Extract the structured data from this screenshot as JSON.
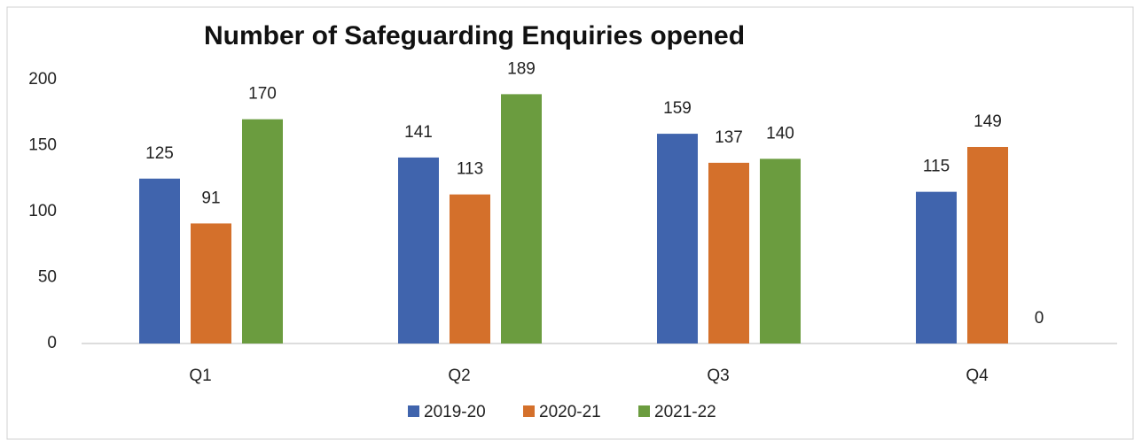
{
  "chart_data": {
    "type": "bar",
    "title": "Number of Safeguarding Enquiries opened",
    "categories": [
      "Q1",
      "Q2",
      "Q3",
      "Q4"
    ],
    "series": [
      {
        "name": "2019-20",
        "color": "#4064ad",
        "values": [
          125,
          141,
          159,
          115
        ]
      },
      {
        "name": "2020-21",
        "color": "#d4702b",
        "values": [
          91,
          113,
          137,
          149
        ]
      },
      {
        "name": "2021-22",
        "color": "#6b9c3f",
        "values": [
          170,
          189,
          140,
          0
        ]
      }
    ],
    "ylim": [
      0,
      200
    ],
    "yticks": [
      0,
      50,
      100,
      150,
      200
    ],
    "grid": false,
    "legend": "bottom"
  }
}
